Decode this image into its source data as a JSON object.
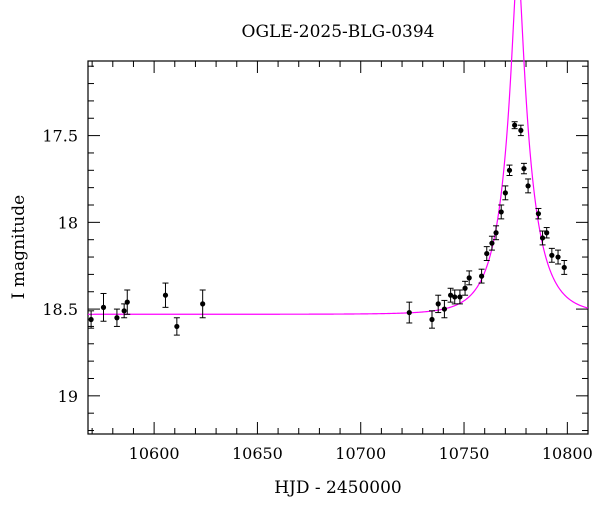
{
  "chart_data": {
    "type": "scatter",
    "title": "OGLE-2025-BLG-0394",
    "xlabel": "HJD - 2450000",
    "ylabel": "I magnitude",
    "xlim": [
      10568,
      10810
    ],
    "ylim": [
      19.22,
      17.07
    ],
    "y_inverted": true,
    "grid": false,
    "x_ticks": [
      10600,
      10650,
      10700,
      10750,
      10800
    ],
    "x_tick_labels": [
      "10600",
      "10650",
      "10700",
      "10750",
      "10800"
    ],
    "y_ticks": [
      17.5,
      18,
      18.5,
      19
    ],
    "y_tick_labels": [
      "17.5",
      "18",
      "18.5",
      "19"
    ],
    "colors": {
      "points": "#000000",
      "model": "#ff00ff"
    },
    "series": [
      {
        "type": "scatter_errorbar",
        "points": [
          {
            "x": 10569.5,
            "y": 18.56,
            "err": 0.05
          },
          {
            "x": 10575.5,
            "y": 18.49,
            "err": 0.08
          },
          {
            "x": 10582.0,
            "y": 18.55,
            "err": 0.05
          },
          {
            "x": 10585.5,
            "y": 18.51,
            "err": 0.04
          },
          {
            "x": 10587.0,
            "y": 18.46,
            "err": 0.07
          },
          {
            "x": 10605.5,
            "y": 18.42,
            "err": 0.07
          },
          {
            "x": 10611.0,
            "y": 18.6,
            "err": 0.05
          },
          {
            "x": 10623.5,
            "y": 18.47,
            "err": 0.08
          },
          {
            "x": 10723.5,
            "y": 18.52,
            "err": 0.06
          },
          {
            "x": 10734.5,
            "y": 18.56,
            "err": 0.05
          },
          {
            "x": 10737.5,
            "y": 18.47,
            "err": 0.05
          },
          {
            "x": 10740.5,
            "y": 18.5,
            "err": 0.05
          },
          {
            "x": 10743.5,
            "y": 18.42,
            "err": 0.04
          },
          {
            "x": 10745.5,
            "y": 18.43,
            "err": 0.04
          },
          {
            "x": 10748.0,
            "y": 18.43,
            "err": 0.04
          },
          {
            "x": 10750.5,
            "y": 18.38,
            "err": 0.04
          },
          {
            "x": 10752.5,
            "y": 18.32,
            "err": 0.04
          },
          {
            "x": 10758.5,
            "y": 18.31,
            "err": 0.04
          },
          {
            "x": 10761.0,
            "y": 18.18,
            "err": 0.04
          },
          {
            "x": 10763.5,
            "y": 18.12,
            "err": 0.04
          },
          {
            "x": 10765.5,
            "y": 18.06,
            "err": 0.04
          },
          {
            "x": 10768.0,
            "y": 17.94,
            "err": 0.04
          },
          {
            "x": 10770.0,
            "y": 17.83,
            "err": 0.04
          },
          {
            "x": 10772.0,
            "y": 17.7,
            "err": 0.03
          },
          {
            "x": 10774.5,
            "y": 17.44,
            "err": 0.02
          },
          {
            "x": 10777.5,
            "y": 17.47,
            "err": 0.03
          },
          {
            "x": 10779.0,
            "y": 17.69,
            "err": 0.03
          },
          {
            "x": 10781.0,
            "y": 17.79,
            "err": 0.04
          },
          {
            "x": 10786.0,
            "y": 17.95,
            "err": 0.03
          },
          {
            "x": 10788.0,
            "y": 18.09,
            "err": 0.04
          },
          {
            "x": 10790.0,
            "y": 18.06,
            "err": 0.03
          },
          {
            "x": 10792.5,
            "y": 18.19,
            "err": 0.04
          },
          {
            "x": 10795.5,
            "y": 18.2,
            "err": 0.04
          },
          {
            "x": 10798.5,
            "y": 18.26,
            "err": 0.04
          }
        ]
      },
      {
        "type": "line",
        "model": {
          "baseline": 18.53,
          "t0": 10776.0,
          "tE": 14.0,
          "u0": 0.16
        }
      }
    ]
  }
}
